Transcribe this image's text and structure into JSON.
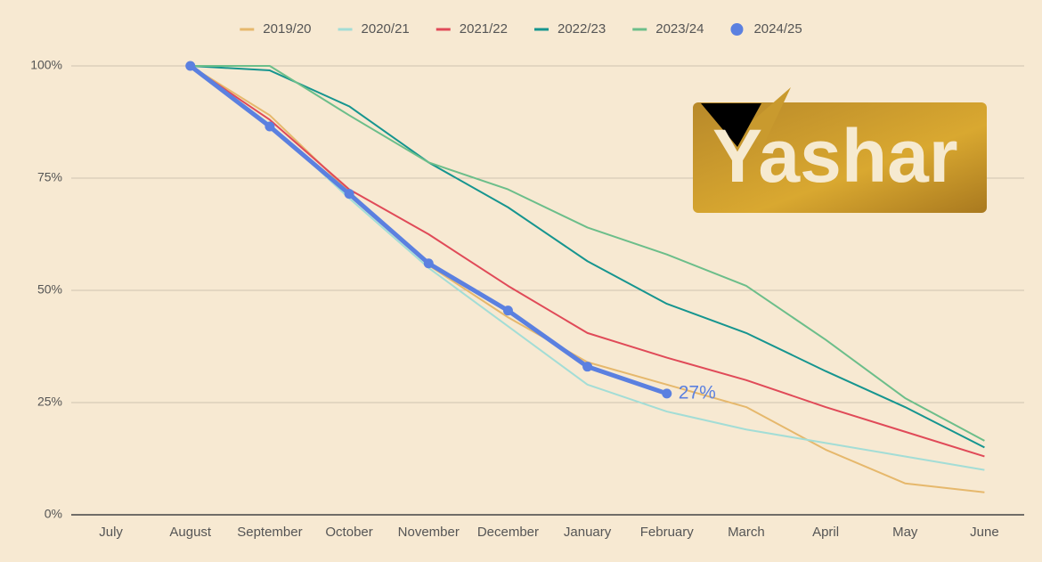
{
  "chart_data": {
    "type": "line",
    "categories": [
      "July",
      "August",
      "September",
      "October",
      "November",
      "December",
      "January",
      "February",
      "March",
      "April",
      "May",
      "June"
    ],
    "ylim": [
      0,
      100
    ],
    "yticks": [
      {
        "value": 0,
        "label": "0%"
      },
      {
        "value": 25,
        "label": "25%"
      },
      {
        "value": 50,
        "label": "50%"
      },
      {
        "value": 75,
        "label": "75%"
      },
      {
        "value": 100,
        "label": "100%"
      }
    ],
    "grid": true,
    "legend": "top",
    "series": [
      {
        "name": "2019/20",
        "color": "#e6b86c",
        "values": [
          null,
          100,
          89,
          72,
          55.6,
          44,
          34,
          29,
          24,
          14.5,
          7,
          5
        ]
      },
      {
        "name": "2020/21",
        "color": "#a3ddd6",
        "values": [
          null,
          100,
          87,
          70.5,
          55,
          42,
          29,
          23,
          19,
          16,
          13,
          10
        ]
      },
      {
        "name": "2021/22",
        "color": "#e04a58",
        "values": [
          null,
          100,
          88,
          72.5,
          62.5,
          51,
          40.5,
          35,
          30,
          24,
          18.5,
          13
        ]
      },
      {
        "name": "2022/23",
        "color": "#16958f",
        "values": [
          null,
          100,
          99,
          91,
          78.5,
          68.5,
          56.5,
          47,
          40.5,
          32,
          24,
          15
        ]
      },
      {
        "name": "2023/24",
        "color": "#6cbe8a",
        "values": [
          null,
          100,
          100,
          89,
          78.5,
          72.5,
          64,
          58,
          51,
          39,
          26,
          16.5
        ]
      },
      {
        "name": "2024/25",
        "color": "#5b80e0",
        "markers": true,
        "values": [
          null,
          100,
          86.5,
          71.5,
          56,
          45.5,
          33,
          27,
          null,
          null,
          null,
          null
        ],
        "value_labels": [
          null,
          null,
          null,
          null,
          null,
          null,
          null,
          "27%",
          null,
          null,
          null,
          null
        ]
      }
    ]
  },
  "logo": "Yashar"
}
